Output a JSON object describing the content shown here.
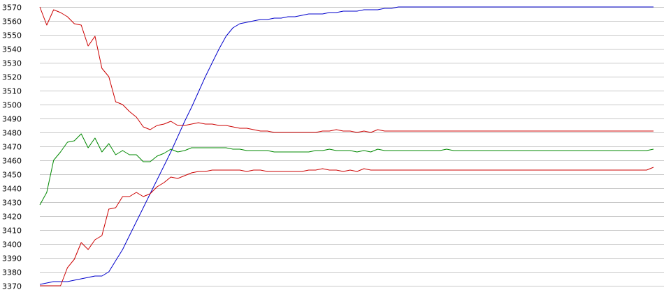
{
  "chart_data": {
    "type": "line",
    "title": "",
    "xlabel": "",
    "ylabel": "",
    "ylim": [
      3370,
      3570
    ],
    "yticks": [
      3370,
      3380,
      3390,
      3400,
      3410,
      3420,
      3430,
      3440,
      3450,
      3460,
      3470,
      3480,
      3490,
      3500,
      3510,
      3520,
      3530,
      3540,
      3550,
      3560,
      3570
    ],
    "grid": true,
    "legend": "none",
    "x": [
      0,
      1,
      2,
      3,
      4,
      5,
      6,
      7,
      8,
      9,
      10,
      11,
      12,
      13,
      14,
      15,
      16,
      17,
      18,
      19,
      20,
      21,
      22,
      23,
      24,
      25,
      26,
      27,
      28,
      29,
      30,
      31,
      32,
      33,
      34,
      35,
      36,
      37,
      38,
      39,
      40,
      41,
      42,
      43,
      44,
      45,
      46,
      47,
      48,
      49,
      50,
      51,
      52,
      53,
      54,
      55,
      56,
      57,
      58,
      59,
      60,
      61,
      62,
      63,
      64,
      65,
      66,
      67,
      68,
      69,
      70,
      71,
      72,
      73,
      74,
      75,
      76,
      77,
      78,
      79,
      80,
      81,
      82,
      83,
      84,
      85,
      86,
      87,
      88,
      89
    ],
    "series": [
      {
        "color": "#0000cc",
        "values": [
          3371,
          3372,
          3373,
          3373,
          3373,
          3374,
          3375,
          3376,
          3377,
          3377,
          3380,
          3388,
          3396,
          3406,
          3416,
          3426,
          3436,
          3446,
          3456,
          3466,
          3477,
          3488,
          3498,
          3509,
          3520,
          3530,
          3540,
          3549,
          3555,
          3558,
          3559,
          3560,
          3561,
          3561,
          3562,
          3562,
          3563,
          3563,
          3564,
          3565,
          3565,
          3565,
          3566,
          3566,
          3567,
          3567,
          3567,
          3568,
          3568,
          3568,
          3569,
          3569,
          3570,
          3570,
          3570,
          3570,
          3570,
          3570,
          3570,
          3570,
          3570,
          3570,
          3570,
          3570,
          3570,
          3570,
          3570,
          3570,
          3570,
          3570,
          3570,
          3570,
          3570,
          3570,
          3570,
          3570,
          3570,
          3570,
          3570,
          3570,
          3570,
          3570,
          3570,
          3570,
          3570,
          3570,
          3570,
          3570,
          3570,
          3570
        ]
      },
      {
        "color": "#cc0000",
        "values": [
          3570,
          3557,
          3568,
          3566,
          3563,
          3558,
          3557,
          3542,
          3549,
          3526,
          3520,
          3502,
          3500,
          3495,
          3491,
          3484,
          3482,
          3485,
          3486,
          3488,
          3485,
          3485,
          3486,
          3487,
          3486,
          3486,
          3485,
          3485,
          3484,
          3483,
          3483,
          3482,
          3481,
          3481,
          3480,
          3480,
          3480,
          3480,
          3480,
          3480,
          3480,
          3481,
          3481,
          3482,
          3481,
          3481,
          3480,
          3481,
          3480,
          3482,
          3481,
          3481,
          3481,
          3481,
          3481,
          3481,
          3481,
          3481,
          3481,
          3481,
          3481,
          3481,
          3481,
          3481,
          3481,
          3481,
          3481,
          3481,
          3481,
          3481,
          3481,
          3481,
          3481,
          3481,
          3481,
          3481,
          3481,
          3481,
          3481,
          3481,
          3481,
          3481,
          3481,
          3481,
          3481,
          3481,
          3481,
          3481,
          3481,
          3481
        ]
      },
      {
        "color": "#008800",
        "values": [
          3428,
          3437,
          3460,
          3466,
          3473,
          3474,
          3479,
          3469,
          3476,
          3466,
          3472,
          3464,
          3467,
          3464,
          3464,
          3459,
          3459,
          3463,
          3465,
          3468,
          3466,
          3467,
          3469,
          3469,
          3469,
          3469,
          3469,
          3469,
          3468,
          3468,
          3467,
          3467,
          3467,
          3467,
          3466,
          3466,
          3466,
          3466,
          3466,
          3466,
          3467,
          3467,
          3468,
          3467,
          3467,
          3467,
          3466,
          3467,
          3466,
          3468,
          3467,
          3467,
          3467,
          3467,
          3467,
          3467,
          3467,
          3467,
          3467,
          3468,
          3467,
          3467,
          3467,
          3467,
          3467,
          3467,
          3467,
          3467,
          3467,
          3467,
          3467,
          3467,
          3467,
          3467,
          3467,
          3467,
          3467,
          3467,
          3467,
          3467,
          3467,
          3467,
          3467,
          3467,
          3467,
          3467,
          3467,
          3467,
          3467,
          3468
        ]
      },
      {
        "color": "#cc0000",
        "values": [
          3370,
          3370,
          3370,
          3370,
          3383,
          3389,
          3401,
          3396,
          3403,
          3406,
          3425,
          3426,
          3434,
          3434,
          3437,
          3434,
          3436,
          3441,
          3444,
          3448,
          3447,
          3449,
          3451,
          3452,
          3452,
          3453,
          3453,
          3453,
          3453,
          3453,
          3452,
          3453,
          3453,
          3452,
          3452,
          3452,
          3452,
          3452,
          3452,
          3453,
          3453,
          3454,
          3453,
          3453,
          3452,
          3453,
          3452,
          3454,
          3453,
          3453,
          3453,
          3453,
          3453,
          3453,
          3453,
          3453,
          3453,
          3453,
          3453,
          3453,
          3453,
          3453,
          3453,
          3453,
          3453,
          3453,
          3453,
          3453,
          3453,
          3453,
          3453,
          3453,
          3453,
          3453,
          3453,
          3453,
          3453,
          3453,
          3453,
          3453,
          3453,
          3453,
          3453,
          3453,
          3453,
          3453,
          3453,
          3453,
          3453,
          3455
        ]
      }
    ]
  }
}
